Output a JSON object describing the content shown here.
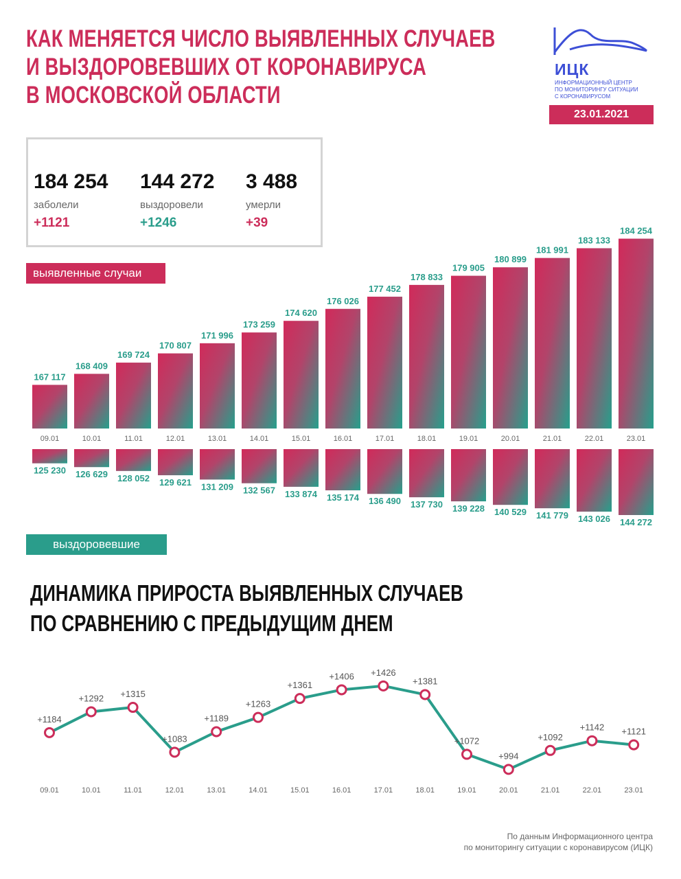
{
  "title_lines": [
    "Как меняется число выявленных случаев",
    "и выздоровевших от коронавируса",
    "в Московской области"
  ],
  "logo": {
    "abbr": "ИЦК",
    "subtitle_lines": [
      "Информационный центр",
      "по мониторингу ситуации",
      "с коронавирусом"
    ]
  },
  "date": "23.01.2021",
  "summary": {
    "cases": {
      "value": "184 254",
      "label": "заболели",
      "delta": "+1121"
    },
    "recovered": {
      "value": "144 272",
      "label": "выздоровели",
      "delta": "+1246"
    },
    "deaths": {
      "value": "3 488",
      "label": "умерли",
      "delta": "+39"
    }
  },
  "tags": {
    "cases": "выявленные случаи",
    "recovered": "выздоровевшие"
  },
  "section_title_lines": [
    "Динамика прироста выявленных случаев",
    "по сравнению с предыдущим днем"
  ],
  "footer_lines": [
    "По данным Информационного центра",
    "по мониторингу ситуации с коронавирусом (ИЦК)"
  ],
  "colors": {
    "pink": "#cc2d5a",
    "teal": "#2a9d8b",
    "dark": "#1a1a1a",
    "gray": "#666666"
  },
  "chart_data": [
    {
      "type": "bar",
      "categories": [
        "09.01",
        "10.01",
        "11.01",
        "12.01",
        "13.01",
        "14.01",
        "15.01",
        "16.01",
        "17.01",
        "18.01",
        "19.01",
        "20.01",
        "21.01",
        "22.01",
        "23.01"
      ],
      "series": [
        {
          "name": "выявленные случаи",
          "values": [
            167117,
            168409,
            169724,
            170807,
            171996,
            173259,
            174620,
            176026,
            177452,
            178833,
            179905,
            180899,
            181991,
            183133,
            184254
          ]
        }
      ],
      "labels": [
        "167 117",
        "168 409",
        "169 724",
        "170 807",
        "171 996",
        "173 259",
        "174 620",
        "176 026",
        "177 452",
        "178 833",
        "179 905",
        "180 899",
        "181 991",
        "183 133",
        "184 254"
      ],
      "ylim": [
        162000,
        184700
      ]
    },
    {
      "type": "bar",
      "categories": [
        "09.01",
        "10.01",
        "11.01",
        "12.01",
        "13.01",
        "14.01",
        "15.01",
        "16.01",
        "17.01",
        "18.01",
        "19.01",
        "20.01",
        "21.01",
        "22.01",
        "23.01"
      ],
      "series": [
        {
          "name": "выздоровевшие",
          "values": [
            125230,
            126629,
            128052,
            129621,
            131209,
            132567,
            133874,
            135174,
            136490,
            137730,
            139228,
            140529,
            141779,
            143026,
            144272
          ]
        }
      ],
      "labels": [
        "125 230",
        "126 629",
        "128 052",
        "129 621",
        "131 209",
        "132 567",
        "133 874",
        "135 174",
        "136 490",
        "137 730",
        "139 228",
        "140 529",
        "141 779",
        "143 026",
        "144 272"
      ],
      "ylim": [
        120000,
        144272
      ]
    },
    {
      "type": "line",
      "title": "Динамика прироста выявленных случаев по сравнению с предыдущим днем",
      "x": [
        "09.01",
        "10.01",
        "11.01",
        "12.01",
        "13.01",
        "14.01",
        "15.01",
        "16.01",
        "17.01",
        "18.01",
        "19.01",
        "20.01",
        "21.01",
        "22.01",
        "23.01"
      ],
      "series": [
        {
          "values": [
            1184,
            1292,
            1315,
            1083,
            1189,
            1263,
            1361,
            1406,
            1426,
            1381,
            1072,
            994,
            1092,
            1142,
            1121
          ]
        }
      ],
      "labels": [
        "+1184",
        "+1292",
        "+1315",
        "+1083",
        "+1189",
        "+1263",
        "+1361",
        "+1406",
        "+1426",
        "+1381",
        "+1072",
        "+994",
        "+1092",
        "+1142",
        "+1121"
      ],
      "ylim": [
        0,
        1500
      ]
    }
  ]
}
